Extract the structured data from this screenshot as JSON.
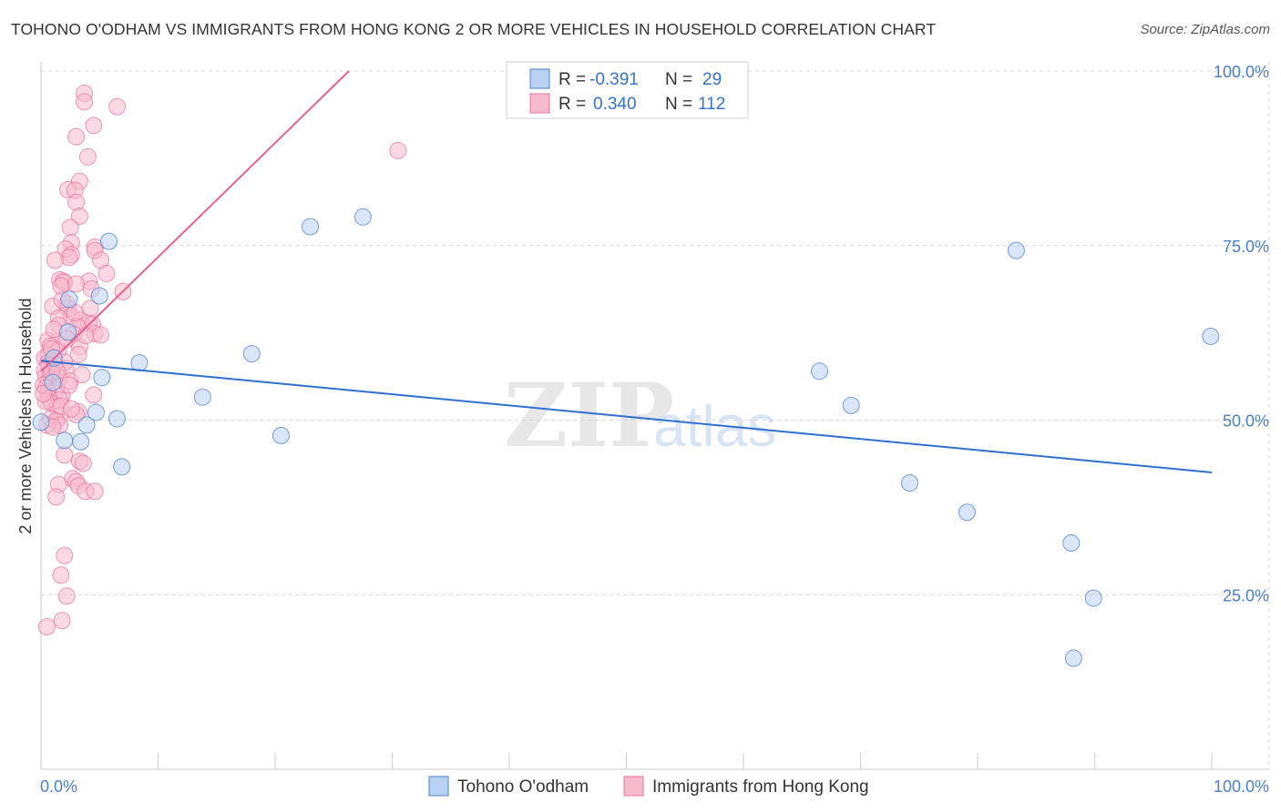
{
  "title": "TOHONO O'ODHAM VS IMMIGRANTS FROM HONG KONG 2 OR MORE VEHICLES IN HOUSEHOLD CORRELATION CHART",
  "source": "Source: ZipAtlas.com",
  "colors": {
    "blue": "#4a7fcc",
    "blue_fill": "#b8d1f2",
    "blue_line": "#2f6fd1",
    "pink": "#e8759e",
    "pink_fill": "#f7b9cc",
    "pink_line": "#e8608f",
    "grid": "#d9d9d9"
  },
  "legend": {
    "rows": [
      {
        "r_label": "R =",
        "r_value": "-0.391",
        "n_label": "N =",
        "n_value": "29",
        "series": "blue"
      },
      {
        "r_label": "R =",
        "r_value": "0.340",
        "n_label": "N =",
        "n_value": "112",
        "series": "pink"
      }
    ]
  },
  "watermark": {
    "zip": "ZIP",
    "atlas": "atlas"
  },
  "chart_data": {
    "type": "scatter",
    "xlabel": "",
    "ylabel": "2 or more Vehicles in Household",
    "xlim": [
      0,
      100
    ],
    "ylim": [
      0,
      100
    ],
    "x_tick_labels": [
      "0.0%",
      "100.0%"
    ],
    "y_tick_labels": [
      "25.0%",
      "50.0%",
      "75.0%",
      "100.0%"
    ],
    "y_ticks": [
      25,
      50,
      75,
      100
    ],
    "series": [
      {
        "name": "Tohono O'odham",
        "color": "blue",
        "trend": {
          "x0": 0,
          "y0": 58.5,
          "x1": 100,
          "y1": 42.5
        },
        "points": [
          [
            2.4,
            67.3
          ],
          [
            5.8,
            75.6
          ],
          [
            5.0,
            67.8
          ],
          [
            2.3,
            62.6
          ],
          [
            8.4,
            58.2
          ],
          [
            5.2,
            56.1
          ],
          [
            1.0,
            55.4
          ],
          [
            4.7,
            51.1
          ],
          [
            6.5,
            50.2
          ],
          [
            3.9,
            49.3
          ],
          [
            0.0,
            49.7
          ],
          [
            2.0,
            47.1
          ],
          [
            3.4,
            46.9
          ],
          [
            6.9,
            43.3
          ],
          [
            13.8,
            53.3
          ],
          [
            18.0,
            59.5
          ],
          [
            20.5,
            47.8
          ],
          [
            23.0,
            77.7
          ],
          [
            27.5,
            79.1
          ],
          [
            66.5,
            57.0
          ],
          [
            69.2,
            52.1
          ],
          [
            74.2,
            41.0
          ],
          [
            79.1,
            36.8
          ],
          [
            83.3,
            74.3
          ],
          [
            88.0,
            32.4
          ],
          [
            89.9,
            24.5
          ],
          [
            88.2,
            15.9
          ],
          [
            99.9,
            62.0
          ],
          [
            1.1,
            58.9
          ]
        ]
      },
      {
        "name": "Immigrants from Hong Kong",
        "color": "pink",
        "trend": {
          "x0": 0,
          "y0": 57.0,
          "x1": 26.3,
          "y1": 100.0
        },
        "points": [
          [
            3.7,
            96.8
          ],
          [
            3.7,
            95.6
          ],
          [
            6.5,
            94.9
          ],
          [
            4.5,
            92.2
          ],
          [
            3.0,
            90.6
          ],
          [
            30.5,
            88.6
          ],
          [
            4.0,
            87.7
          ],
          [
            3.3,
            84.2
          ],
          [
            2.3,
            83.0
          ],
          [
            2.9,
            82.9
          ],
          [
            3.0,
            81.2
          ],
          [
            3.3,
            79.2
          ],
          [
            2.5,
            77.6
          ],
          [
            2.6,
            75.4
          ],
          [
            4.6,
            74.8
          ],
          [
            2.1,
            74.5
          ],
          [
            4.6,
            74.3
          ],
          [
            2.6,
            73.7
          ],
          [
            2.4,
            73.3
          ],
          [
            1.2,
            72.9
          ],
          [
            5.1,
            72.9
          ],
          [
            5.6,
            71.0
          ],
          [
            1.6,
            70.1
          ],
          [
            1.9,
            69.9
          ],
          [
            4.1,
            69.9
          ],
          [
            2.0,
            69.7
          ],
          [
            3.0,
            69.5
          ],
          [
            1.7,
            69.2
          ],
          [
            7.0,
            68.4
          ],
          [
            2.2,
            66.7
          ],
          [
            1.0,
            66.3
          ],
          [
            2.3,
            66.0
          ],
          [
            4.2,
            66.0
          ],
          [
            2.6,
            64.9
          ],
          [
            1.5,
            64.6
          ],
          [
            3.4,
            64.3
          ],
          [
            1.5,
            63.6
          ],
          [
            4.1,
            63.9
          ],
          [
            4.4,
            63.7
          ],
          [
            3.1,
            63.4
          ],
          [
            4.6,
            62.4
          ],
          [
            5.1,
            62.2
          ],
          [
            2.8,
            62.3
          ],
          [
            0.6,
            61.4
          ],
          [
            1.4,
            61.2
          ],
          [
            0.8,
            60.6
          ],
          [
            3.3,
            60.5
          ],
          [
            1.5,
            60.0
          ],
          [
            0.6,
            59.3
          ],
          [
            3.2,
            59.4
          ],
          [
            0.3,
            58.9
          ],
          [
            0.6,
            58.2
          ],
          [
            0.7,
            57.8
          ],
          [
            1.1,
            57.5
          ],
          [
            2.1,
            57.4
          ],
          [
            0.3,
            57.1
          ],
          [
            0.8,
            56.6
          ],
          [
            0.4,
            56.3
          ],
          [
            1.0,
            56.1
          ],
          [
            1.6,
            56.0
          ],
          [
            2.5,
            55.6
          ],
          [
            0.6,
            55.4
          ],
          [
            0.2,
            55.0
          ],
          [
            0.4,
            54.6
          ],
          [
            1.3,
            54.3
          ],
          [
            0.6,
            54.0
          ],
          [
            1.8,
            53.5
          ],
          [
            4.5,
            53.6
          ],
          [
            0.7,
            53.1
          ],
          [
            1.6,
            52.9
          ],
          [
            0.9,
            52.4
          ],
          [
            1.4,
            51.9
          ],
          [
            3.2,
            51.2
          ],
          [
            1.6,
            50.6
          ],
          [
            0.8,
            50.2
          ],
          [
            1.3,
            49.9
          ],
          [
            1.6,
            49.3
          ],
          [
            0.5,
            49.3
          ],
          [
            1.0,
            49.0
          ],
          [
            2.0,
            45.0
          ],
          [
            3.3,
            44.1
          ],
          [
            3.6,
            43.8
          ],
          [
            2.7,
            41.6
          ],
          [
            3.0,
            41.2
          ],
          [
            1.5,
            40.8
          ],
          [
            3.2,
            40.6
          ],
          [
            3.8,
            39.8
          ],
          [
            4.6,
            39.8
          ],
          [
            1.3,
            39.0
          ],
          [
            2.0,
            30.6
          ],
          [
            1.7,
            27.8
          ],
          [
            2.2,
            24.8
          ],
          [
            1.8,
            21.3
          ],
          [
            0.5,
            20.4
          ],
          [
            2.0,
            58.3
          ],
          [
            1.2,
            58.0
          ],
          [
            0.9,
            56.9
          ],
          [
            2.4,
            55.0
          ],
          [
            1.7,
            52.0
          ],
          [
            3.0,
            50.8
          ],
          [
            0.4,
            52.7
          ],
          [
            1.1,
            63.0
          ],
          [
            3.8,
            62.1
          ],
          [
            2.9,
            65.4
          ],
          [
            1.8,
            67.2
          ],
          [
            4.3,
            68.8
          ],
          [
            0.9,
            60.2
          ],
          [
            2.2,
            61.6
          ],
          [
            1.4,
            57.0
          ],
          [
            0.2,
            53.8
          ],
          [
            3.5,
            56.5
          ],
          [
            2.6,
            51.6
          ]
        ]
      }
    ]
  },
  "bottom_legend": [
    {
      "label": "Tohono O'odham",
      "series": "blue"
    },
    {
      "label": "Immigrants from Hong Kong",
      "series": "pink"
    }
  ]
}
